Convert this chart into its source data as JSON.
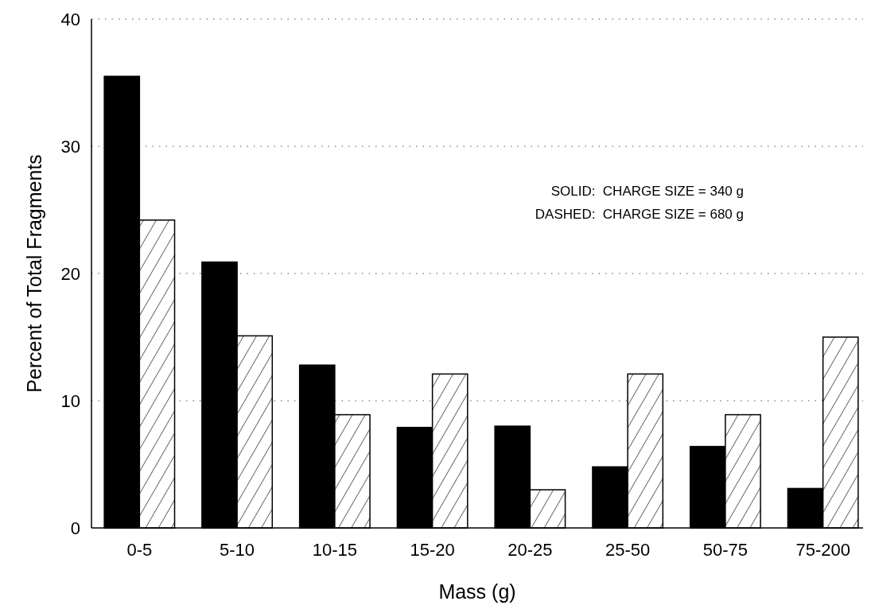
{
  "chart_data": {
    "type": "bar",
    "xlabel": "Mass (g)",
    "ylabel": "Percent of Total Fragments",
    "categories": [
      "0-5",
      "5-10",
      "10-15",
      "15-20",
      "20-25",
      "25-50",
      "50-75",
      "75-200"
    ],
    "series": [
      {
        "color": "#000000",
        "values": [
          35.5,
          20.9,
          12.8,
          7.9,
          8.0,
          4.8,
          6.4,
          3.1
        ]
      },
      {
        "color": "#000000",
        "values": [
          24.2,
          15.1,
          8.9,
          12.1,
          3.0,
          12.1,
          8.9,
          15.0
        ]
      }
    ],
    "ylim": [
      0,
      40
    ],
    "yticks": [
      0,
      10,
      20,
      30,
      40
    ],
    "grid": "y",
    "annotations": [
      "SOLID:  CHARGE SIZE = 340 g",
      "DASHED:  CHARGE SIZE = 680 g"
    ]
  }
}
